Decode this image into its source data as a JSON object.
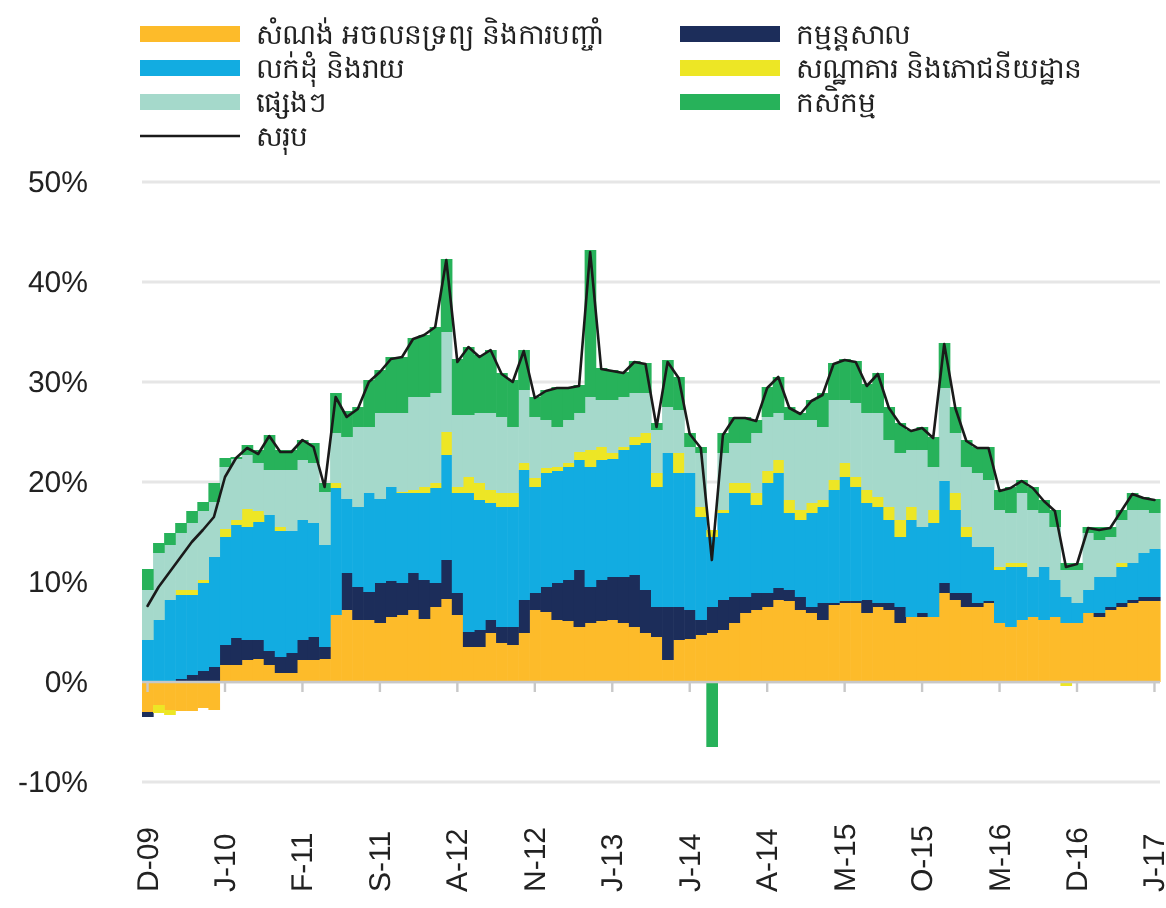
{
  "chart_data": {
    "type": "bar",
    "stacked": true,
    "categories": [
      "D-09",
      null,
      null,
      null,
      null,
      null,
      null,
      "J-10",
      null,
      null,
      null,
      null,
      null,
      null,
      "F-11",
      null,
      null,
      null,
      null,
      null,
      null,
      "S-11",
      null,
      null,
      null,
      null,
      null,
      null,
      "A-12",
      null,
      null,
      null,
      null,
      null,
      null,
      "N-12",
      null,
      null,
      null,
      null,
      null,
      null,
      "J-13",
      null,
      null,
      null,
      null,
      null,
      null,
      "J-14",
      null,
      null,
      null,
      null,
      null,
      null,
      "A-14",
      null,
      null,
      null,
      null,
      null,
      null,
      "M-15",
      null,
      null,
      null,
      null,
      null,
      null,
      "O-15",
      null,
      null,
      null,
      null,
      null,
      null,
      "M-16",
      null,
      null,
      null,
      null,
      null,
      null,
      "D-16",
      null,
      null,
      null,
      null,
      null,
      null,
      "J-17"
    ],
    "series": [
      {
        "name": "សំណង់ អចលនទ្រព្យ និងការបញ្ចាំ",
        "color": "#fdbb2a",
        "values": [
          -3.0,
          -2.3,
          -2.8,
          -2.9,
          -2.9,
          -2.6,
          -2.8,
          1.7,
          1.7,
          2.2,
          2.3,
          1.7,
          0.9,
          0.9,
          2.2,
          2.2,
          2.3,
          6.7,
          7.2,
          6.2,
          6.2,
          5.9,
          6.5,
          6.7,
          7.2,
          6.3,
          7.5,
          8.3,
          6.7,
          3.5,
          3.5,
          4.9,
          3.9,
          3.7,
          4.9,
          7.2,
          7.0,
          6.2,
          6.1,
          5.5,
          5.9,
          6.1,
          6.2,
          5.9,
          5.5,
          4.9,
          4.5,
          2.2,
          4.2,
          4.3,
          4.7,
          4.9,
          5.2,
          5.9,
          6.9,
          7.2,
          7.5,
          8.2,
          8.1,
          7.2,
          6.9,
          6.2,
          7.7,
          7.9,
          7.9,
          6.9,
          7.5,
          7.2,
          5.9,
          6.5,
          6.5,
          6.5,
          8.9,
          8.2,
          7.5,
          7.5,
          7.9,
          5.9,
          5.5,
          6.2,
          6.5,
          6.2,
          6.5,
          5.9,
          5.9,
          6.9,
          6.5,
          7.2,
          7.5,
          7.9,
          8.1,
          8.1
        ]
      },
      {
        "name": "កម្មន្តសាល",
        "color": "#1c2d5a",
        "values": [
          -0.5,
          0,
          0,
          0.3,
          0.7,
          1.1,
          1.5,
          2.0,
          2.7,
          2.0,
          1.9,
          1.4,
          1.6,
          2.0,
          2.0,
          2.3,
          1.2,
          0,
          3.7,
          3.3,
          2.8,
          4.0,
          3.6,
          3.2,
          3.7,
          3.9,
          2.4,
          3.9,
          2.2,
          1.5,
          1.7,
          1.3,
          1.6,
          1.8,
          3.3,
          1.7,
          2.5,
          3.7,
          4.1,
          5.7,
          3.6,
          4.1,
          4.3,
          4.6,
          5.2,
          4.3,
          3.0,
          5.3,
          3.3,
          2.9,
          1.5,
          2.6,
          3.0,
          2.6,
          1.6,
          1.7,
          1.4,
          1.2,
          1.1,
          1.3,
          0.6,
          1.7,
          0.2,
          0.2,
          0.2,
          1.3,
          0.4,
          0.7,
          1.6,
          0,
          0.4,
          0,
          1.0,
          0.7,
          1.4,
          0.4,
          0.2,
          0,
          0,
          0,
          0,
          0,
          0,
          0,
          0,
          0,
          0.4,
          0.3,
          0.4,
          0.3,
          0.4,
          0.4
        ]
      },
      {
        "name": "លក់ដុំ និងរាយ",
        "color": "#12ace1",
        "values": [
          4.2,
          6.2,
          8.2,
          8.4,
          8.0,
          8.8,
          11.0,
          10.8,
          11.3,
          11.3,
          11.8,
          13.6,
          12.6,
          12.2,
          12.0,
          11.4,
          10.2,
          12.7,
          7.4,
          8.0,
          9.9,
          8.4,
          9.4,
          9.0,
          8.0,
          8.7,
          9.5,
          10.5,
          10.0,
          13.9,
          13.0,
          11.7,
          12.0,
          12.0,
          13.0,
          10.6,
          11.4,
          11.2,
          11.3,
          11.0,
          12.0,
          12.0,
          11.8,
          12.7,
          13.0,
          14.7,
          12.0,
          15.4,
          13.4,
          13.7,
          10.3,
          7.0,
          8.7,
          10.4,
          10.4,
          8.8,
          11.0,
          11.5,
          7.7,
          7.7,
          9.4,
          9.6,
          11.3,
          12.4,
          11.4,
          9.7,
          9.6,
          8.3,
          7.0,
          9.7,
          8.6,
          9.4,
          10.2,
          8.3,
          5.6,
          5.6,
          5.4,
          5.3,
          6.0,
          5.3,
          4.0,
          5.3,
          3.7,
          2.6,
          2.0,
          2.3,
          3.6,
          3.0,
          3.6,
          3.7,
          4.4,
          4.8
        ]
      },
      {
        "name": "សណ្ឋាគារ និងភោជនីយដ្ឋាន",
        "color": "#ede625",
        "values": [
          0,
          -0.8,
          -0.5,
          0.5,
          0.5,
          0.3,
          0,
          0.8,
          0.5,
          1.8,
          1.1,
          0,
          0.4,
          0,
          0,
          0,
          0,
          0.5,
          0,
          0,
          0,
          0,
          0,
          0.1,
          0.3,
          0.6,
          0.5,
          2.3,
          0.6,
          1.6,
          1.7,
          1.3,
          1.4,
          1.4,
          0.7,
          0.9,
          0.5,
          0.4,
          0.4,
          0.8,
          1.7,
          1.3,
          0.6,
          0.3,
          0.8,
          1.0,
          1.4,
          0,
          2.0,
          0,
          1.0,
          0.7,
          0.3,
          1.0,
          1.0,
          1.2,
          1.2,
          1.3,
          1.3,
          1.0,
          1.0,
          0.7,
          1.0,
          1.4,
          1.0,
          1.3,
          1.0,
          1.3,
          1.7,
          1.3,
          0,
          1.3,
          0,
          1.7,
          1.0,
          0,
          0,
          0.3,
          0.4,
          0.4,
          0,
          0,
          0,
          -0.4,
          0,
          0,
          0,
          0,
          0.4,
          0,
          0,
          0
        ]
      },
      {
        "name": "ផ្សេងៗ",
        "color": "#a5d9cb",
        "values": [
          5.0,
          6.7,
          5.5,
          5.7,
          6.7,
          6.9,
          5.5,
          6.2,
          6.1,
          5.4,
          4.8,
          4.5,
          5.7,
          6.1,
          6.0,
          6.0,
          5.3,
          5.0,
          6.2,
          8.0,
          6.6,
          8.6,
          7.4,
          7.9,
          9.3,
          9.0,
          9.0,
          10.0,
          7.2,
          6.2,
          7.0,
          7.7,
          7.6,
          6.6,
          7.3,
          6.1,
          4.8,
          4.0,
          4.3,
          3.9,
          5.3,
          4.7,
          5.3,
          5.0,
          4.4,
          4.0,
          4.3,
          4.6,
          4.3,
          2.6,
          5.4,
          0,
          5.7,
          4.0,
          4.0,
          6.0,
          5.4,
          4.7,
          8.0,
          9.0,
          8.3,
          7.3,
          8.0,
          6.3,
          7.4,
          7.7,
          8.4,
          6.7,
          6.7,
          5.7,
          7.7,
          4.3,
          9.3,
          6.0,
          6.0,
          7.4,
          6.7,
          5.7,
          5.0,
          7.0,
          6.7,
          5.4,
          5.3,
          2.7,
          3.3,
          5.7,
          3.7,
          4.0,
          4.3,
          5.3,
          4.3,
          3.6
        ]
      },
      {
        "name": "កសិកម្ម",
        "color": "#27b25a",
        "values": [
          2.1,
          1.0,
          1.2,
          1.0,
          1.2,
          0.9,
          1.9,
          0.9,
          0.2,
          1.0,
          1.3,
          3.5,
          2.0,
          2.0,
          2.0,
          2.0,
          0.9,
          4.0,
          2.6,
          2.0,
          4.7,
          4.3,
          5.6,
          5.6,
          5.9,
          6.2,
          6.6,
          7.3,
          5.6,
          6.8,
          5.8,
          6.3,
          4.4,
          4.7,
          4.0,
          2.0,
          3.0,
          4.0,
          3.3,
          2.8,
          14.7,
          3.2,
          3.0,
          2.5,
          3.2,
          3.0,
          0.7,
          4.7,
          3.3,
          1.4,
          0.6,
          -6.5,
          2.0,
          2.6,
          2.6,
          1.3,
          3.0,
          3.6,
          1.3,
          0.7,
          2.0,
          3.4,
          3.7,
          4.1,
          4.2,
          2.9,
          4.0,
          3.3,
          3.0,
          2.0,
          2.3,
          3.0,
          4.5,
          2.6,
          2.7,
          2.6,
          3.3,
          2.0,
          2.6,
          1.3,
          2.3,
          1.3,
          1.7,
          0.7,
          0.7,
          0.6,
          1.3,
          1.0,
          1.0,
          1.7,
          1.3,
          1.4
        ]
      },
      {
        "name": "សរុប",
        "type": "line",
        "color": "#1a1a1a",
        "values": [
          7.6,
          9.5,
          11.0,
          12.5,
          14.0,
          15.2,
          16.5,
          20.5,
          22.4,
          23.4,
          22.8,
          24.6,
          23.0,
          23.0,
          24.2,
          23.5,
          19.5,
          28.5,
          26.5,
          27.3,
          30.0,
          31.0,
          32.3,
          32.5,
          34.3,
          34.7,
          35.5,
          42.2,
          32.0,
          33.5,
          32.5,
          33.2,
          30.8,
          30.0,
          33.1,
          28.4,
          29.1,
          29.4,
          29.4,
          29.6,
          43.0,
          31.3,
          31.1,
          30.9,
          32.0,
          31.8,
          25.5,
          32.0,
          30.4,
          24.8,
          23.4,
          12.2,
          24.7,
          26.4,
          26.4,
          26.1,
          29.4,
          30.5,
          27.4,
          26.8,
          28.1,
          28.7,
          31.8,
          32.2,
          32.0,
          29.6,
          30.8,
          27.4,
          25.8,
          25.1,
          25.4,
          24.4,
          33.8,
          27.4,
          24.1,
          23.4,
          23.4,
          19.1,
          19.4,
          20.1,
          19.4,
          18.1,
          17.1,
          11.5,
          11.8,
          15.4,
          15.2,
          15.4,
          17.1,
          18.8,
          18.4,
          18.2
        ]
      }
    ],
    "ylim": [
      -10,
      50
    ],
    "yticks": [
      {
        "value": -10,
        "label": "-10%"
      },
      {
        "value": 0,
        "label": "0%"
      },
      {
        "value": 10,
        "label": "10%"
      },
      {
        "value": 20,
        "label": "20%"
      },
      {
        "value": 30,
        "label": "30%"
      },
      {
        "value": 40,
        "label": "40%"
      },
      {
        "value": 50,
        "label": "50%"
      }
    ],
    "grid": "y",
    "legend": "top",
    "marker": "none",
    "line_style": "solid"
  }
}
